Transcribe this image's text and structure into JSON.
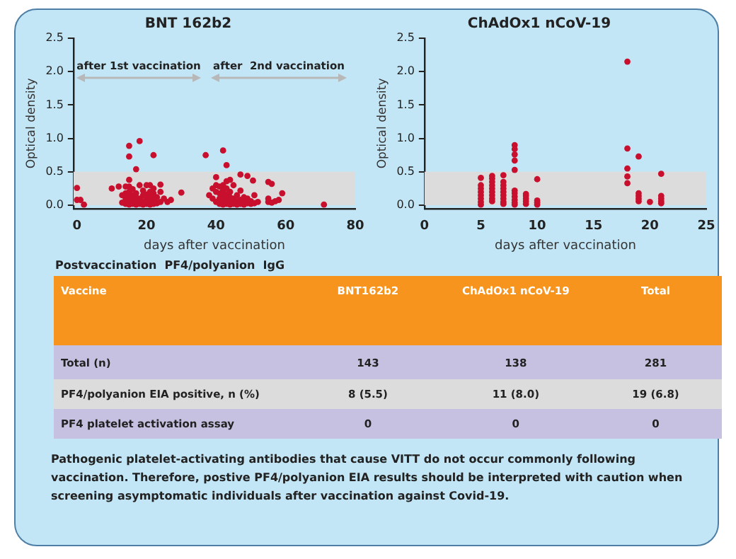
{
  "chart_data": [
    {
      "type": "scatter",
      "title": "BNT 162b2",
      "xlabel": "days after vaccination",
      "ylabel": "Optical density",
      "xlim": [
        -1,
        80
      ],
      "ylim": [
        -0.05,
        2.5
      ],
      "xticks": [
        0,
        20,
        40,
        60,
        80
      ],
      "yticks": [
        {
          "value": 0,
          "label": "0.0"
        },
        0.5,
        {
          "value": 1,
          "label": "1.0"
        },
        1.5,
        {
          "value": 2,
          "label": "2.0"
        },
        2.5
      ],
      "grid": false,
      "legend": false,
      "marker": "circle",
      "bands": [
        {
          "axis": "y",
          "from": 0,
          "to": 0.5,
          "color": "#dcdcdc"
        }
      ],
      "annotations": [
        "after 1st vaccination",
        "after  2nd vaccination"
      ],
      "series": [
        {
          "color": "#c8102e",
          "x": [
            0,
            0,
            1,
            2,
            10,
            12,
            15,
            15,
            17,
            18,
            22,
            37,
            42,
            43,
            47,
            49,
            50.6,
            55,
            56,
            59,
            71,
            30,
            27,
            24,
            40,
            38,
            51,
            14,
            14,
            14,
            15,
            15,
            15,
            15,
            15,
            15,
            16,
            16,
            16,
            16,
            17,
            17,
            17,
            17,
            18,
            18,
            18,
            19,
            19,
            19,
            19,
            20,
            20,
            20,
            20,
            21,
            21,
            21,
            21,
            21,
            22,
            22,
            22,
            22,
            23,
            23,
            24,
            24,
            25,
            26,
            13,
            13,
            14,
            40,
            40,
            40,
            41,
            41,
            41,
            41,
            42,
            42,
            42,
            42,
            42,
            43,
            43,
            43,
            43,
            43,
            44,
            44,
            44,
            44,
            44,
            45,
            45,
            45,
            46,
            46,
            46,
            47,
            47,
            47,
            48,
            48,
            48,
            49,
            49,
            50,
            50,
            51,
            52,
            39,
            39,
            55,
            55,
            56,
            57,
            58
          ],
          "values": [
            0.26,
            0.08,
            0.08,
            0.01,
            0.25,
            0.28,
            0.89,
            0.73,
            0.54,
            0.96,
            0.75,
            0.75,
            0.82,
            0.6,
            0.46,
            0.44,
            0.37,
            0.35,
            0.32,
            0.18,
            0.01,
            0.19,
            0.08,
            0.31,
            0.42,
            0.15,
            0.15,
            0.02,
            0.1,
            0.18,
            0.01,
            0.05,
            0.12,
            0.2,
            0.28,
            0.38,
            0.02,
            0.08,
            0.15,
            0.24,
            0.01,
            0.05,
            0.12,
            0.18,
            0.02,
            0.1,
            0.3,
            0.01,
            0.06,
            0.15,
            0.22,
            0.02,
            0.08,
            0.16,
            0.3,
            0.01,
            0.05,
            0.12,
            0.2,
            0.3,
            0.02,
            0.1,
            0.18,
            0.25,
            0.03,
            0.12,
            0.05,
            0.2,
            0.1,
            0.05,
            0.15,
            0.04,
            0.28,
            0.05,
            0.2,
            0.3,
            0.02,
            0.1,
            0.18,
            0.28,
            0.01,
            0.06,
            0.14,
            0.22,
            0.3,
            0.02,
            0.08,
            0.16,
            0.25,
            0.36,
            0.01,
            0.05,
            0.12,
            0.2,
            0.38,
            0.02,
            0.1,
            0.3,
            0.01,
            0.06,
            0.15,
            0.02,
            0.08,
            0.22,
            0.01,
            0.05,
            0.12,
            0.03,
            0.1,
            0.02,
            0.06,
            0.03,
            0.05,
            0.1,
            0.25,
            0.05,
            0.1,
            0.04,
            0.06,
            0.08
          ]
        }
      ]
    },
    {
      "type": "scatter",
      "title": "ChAdOx1 nCoV-19",
      "xlabel": "days after vaccination",
      "ylabel": "Optical density",
      "xlim": [
        0,
        25
      ],
      "ylim": [
        -0.05,
        2.5
      ],
      "xticks": [
        0,
        5,
        10,
        15,
        20,
        25
      ],
      "yticks": [
        {
          "value": 0,
          "label": "0.0"
        },
        0.5,
        {
          "value": 1,
          "label": "1.0"
        },
        1.5,
        {
          "value": 2,
          "label": "2.0"
        },
        2.5
      ],
      "grid": false,
      "legend": false,
      "marker": "circle",
      "bands": [
        {
          "axis": "y",
          "from": 0,
          "to": 0.5,
          "color": "#dcdcdc"
        }
      ],
      "series": [
        {
          "color": "#c8102e",
          "x": [
            5,
            5,
            5,
            5,
            5,
            5,
            5,
            5,
            6,
            6,
            6,
            6,
            6,
            6,
            6,
            6,
            6,
            7,
            7,
            7,
            7,
            7,
            7,
            7,
            7,
            7,
            8,
            8,
            8,
            8,
            8,
            8,
            8,
            8,
            8,
            8,
            8,
            9,
            9,
            9,
            9,
            9,
            10,
            10,
            10,
            10,
            18,
            18,
            18,
            18,
            18,
            19,
            19,
            19,
            19,
            19,
            20,
            21,
            21,
            21,
            21,
            21
          ],
          "values": [
            0.41,
            0.3,
            0.25,
            0.2,
            0.15,
            0.1,
            0.05,
            0.01,
            0.44,
            0.4,
            0.35,
            0.3,
            0.25,
            0.2,
            0.15,
            0.1,
            0.06,
            0.45,
            0.35,
            0.3,
            0.25,
            0.2,
            0.15,
            0.1,
            0.05,
            0.02,
            0.9,
            0.84,
            0.76,
            0.67,
            0.53,
            0.22,
            0.18,
            0.13,
            0.08,
            0.04,
            0.01,
            0.17,
            0.14,
            0.1,
            0.06,
            0.02,
            0.39,
            0.07,
            0.04,
            0.01,
            2.15,
            0.85,
            0.55,
            0.43,
            0.33,
            0.73,
            0.18,
            0.14,
            0.1,
            0.06,
            0.05,
            0.47,
            0.14,
            0.1,
            0.06,
            0.03
          ]
        }
      ]
    },
    {
      "type": "other",
      "title": "Postvaccination  PF4/polyanion  IgG",
      "categories": [
        "Vaccine",
        "BNT162b2",
        "ChAdOx1 nCoV-19",
        "Total"
      ],
      "y_categories": [
        "Total (n)",
        "PF4/polyanion EIA positive, n (%)",
        "PF4 platelet activation assay"
      ],
      "cell_labels": [
        [
          "143",
          "138",
          "281"
        ],
        [
          "8 (5.5)",
          "11 (8.0)",
          "19 (6.8)"
        ],
        [
          "0",
          "0",
          "0"
        ]
      ],
      "annotations": [
        "Pathogenic platelet-activating antibodies that cause VITT do not occur commonly following vaccination. Therefore, postive PF4/polyanion EIA results should be interpreted with caution when screening asymptomatic individuals after vaccination against Covid-19."
      ]
    }
  ]
}
